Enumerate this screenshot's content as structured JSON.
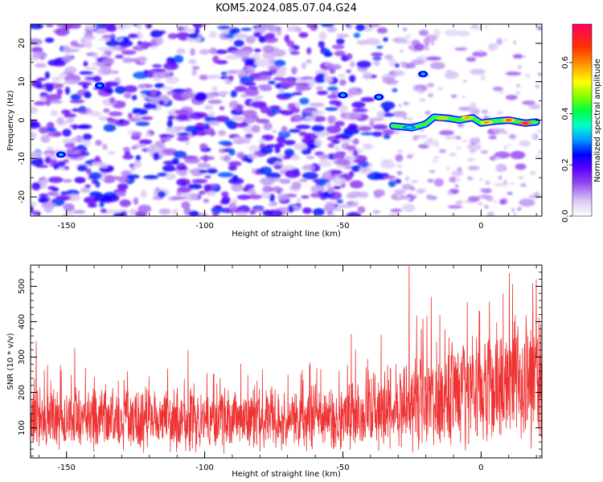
{
  "title": "KOM5.2024.085.07.04.G24",
  "chart_data": [
    {
      "type": "heatmap",
      "panel": "spectrogram",
      "xlabel": "Height of straight line (km)",
      "ylabel": "Frequency (Hz)",
      "xlim": [
        -163,
        22
      ],
      "ylim": [
        -25,
        25
      ],
      "xticks": [
        -150,
        -100,
        -50,
        0
      ],
      "xtick_labels": [
        "-150",
        "-100",
        "-50",
        "0"
      ],
      "yticks": [
        -20,
        -10,
        0,
        10,
        20
      ],
      "ytick_labels": [
        "-20",
        "-10",
        "0",
        "10",
        "20"
      ],
      "signal_ridge": {
        "description_points": [
          {
            "x": -32,
            "y": -1.5
          },
          {
            "x": -25,
            "y": -2.0
          },
          {
            "x": -20,
            "y": -1.0
          },
          {
            "x": -17,
            "y": 0.8
          },
          {
            "x": -12,
            "y": 0.5
          },
          {
            "x": -8,
            "y": 0.0
          },
          {
            "x": -3,
            "y": 0.6
          },
          {
            "x": 0,
            "y": -0.8
          },
          {
            "x": 5,
            "y": -0.3
          },
          {
            "x": 10,
            "y": 0.0
          },
          {
            "x": 16,
            "y": -0.8
          },
          {
            "x": 20,
            "y": -0.5
          }
        ],
        "peak_amplitude": 0.75
      },
      "colorbar": {
        "label": "Normalized spectral amplitude",
        "range": [
          0.0,
          0.75
        ],
        "ticks": [
          0.0,
          0.2,
          0.4,
          0.6
        ],
        "tick_labels": [
          "0.0",
          "0.2",
          "0.4",
          "0.6"
        ],
        "colors": [
          "#ffffff",
          "#d9c8f5",
          "#8f3df0",
          "#5a00ff",
          "#0000ff",
          "#00a0ff",
          "#00ffcc",
          "#00ff40",
          "#7fff00",
          "#ffff00",
          "#ffa000",
          "#ff3000",
          "#ff0060"
        ]
      }
    },
    {
      "type": "line",
      "panel": "snr",
      "xlabel": "Height of straight line (km)",
      "ylabel": "SNR (10 * v/v)",
      "xlim": [
        -163,
        22
      ],
      "ylim": [
        15,
        560
      ],
      "xticks": [
        -150,
        -100,
        -50,
        0
      ],
      "xtick_labels": [
        "-150",
        "-100",
        "-50",
        "0"
      ],
      "yticks": [
        100,
        200,
        300,
        400,
        500
      ],
      "ytick_labels": [
        "100",
        "200",
        "300",
        "400",
        "500"
      ],
      "color": "#ee3333",
      "trend": [
        {
          "x": -163,
          "mean": 125,
          "spread": 90
        },
        {
          "x": -100,
          "mean": 120,
          "spread": 90
        },
        {
          "x": -50,
          "mean": 130,
          "spread": 95
        },
        {
          "x": -30,
          "mean": 160,
          "spread": 130
        },
        {
          "x": 0,
          "mean": 200,
          "spread": 170
        },
        {
          "x": 22,
          "mean": 250,
          "spread": 190
        }
      ],
      "notable_peaks": [
        {
          "x": -161,
          "y": 345
        },
        {
          "x": -147,
          "y": 325
        },
        {
          "x": -106,
          "y": 320
        },
        {
          "x": -47,
          "y": 365
        },
        {
          "x": -26,
          "y": 558
        },
        {
          "x": -18,
          "y": 470
        },
        {
          "x": -5,
          "y": 455
        },
        {
          "x": 8,
          "y": 480
        },
        {
          "x": 20,
          "y": 520
        }
      ]
    }
  ]
}
